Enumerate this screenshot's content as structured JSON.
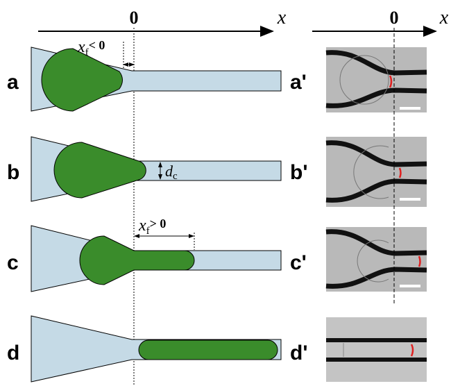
{
  "left_axis": {
    "origin": "0",
    "variable": "x"
  },
  "right_axis": {
    "origin": "0",
    "variable": "x"
  },
  "annotations": {
    "xf_negative": {
      "variable": "x",
      "subscript": "f",
      "relation": "< 0"
    },
    "dc": {
      "variable": "d",
      "subscript": "c"
    },
    "xf_positive": {
      "variable": "x",
      "subscript": "f",
      "relation": "> 0"
    }
  },
  "schematic_panels": [
    "a",
    "b",
    "c",
    "d"
  ],
  "micrograph_panels": [
    "a'",
    "b'",
    "c'",
    "d'"
  ]
}
